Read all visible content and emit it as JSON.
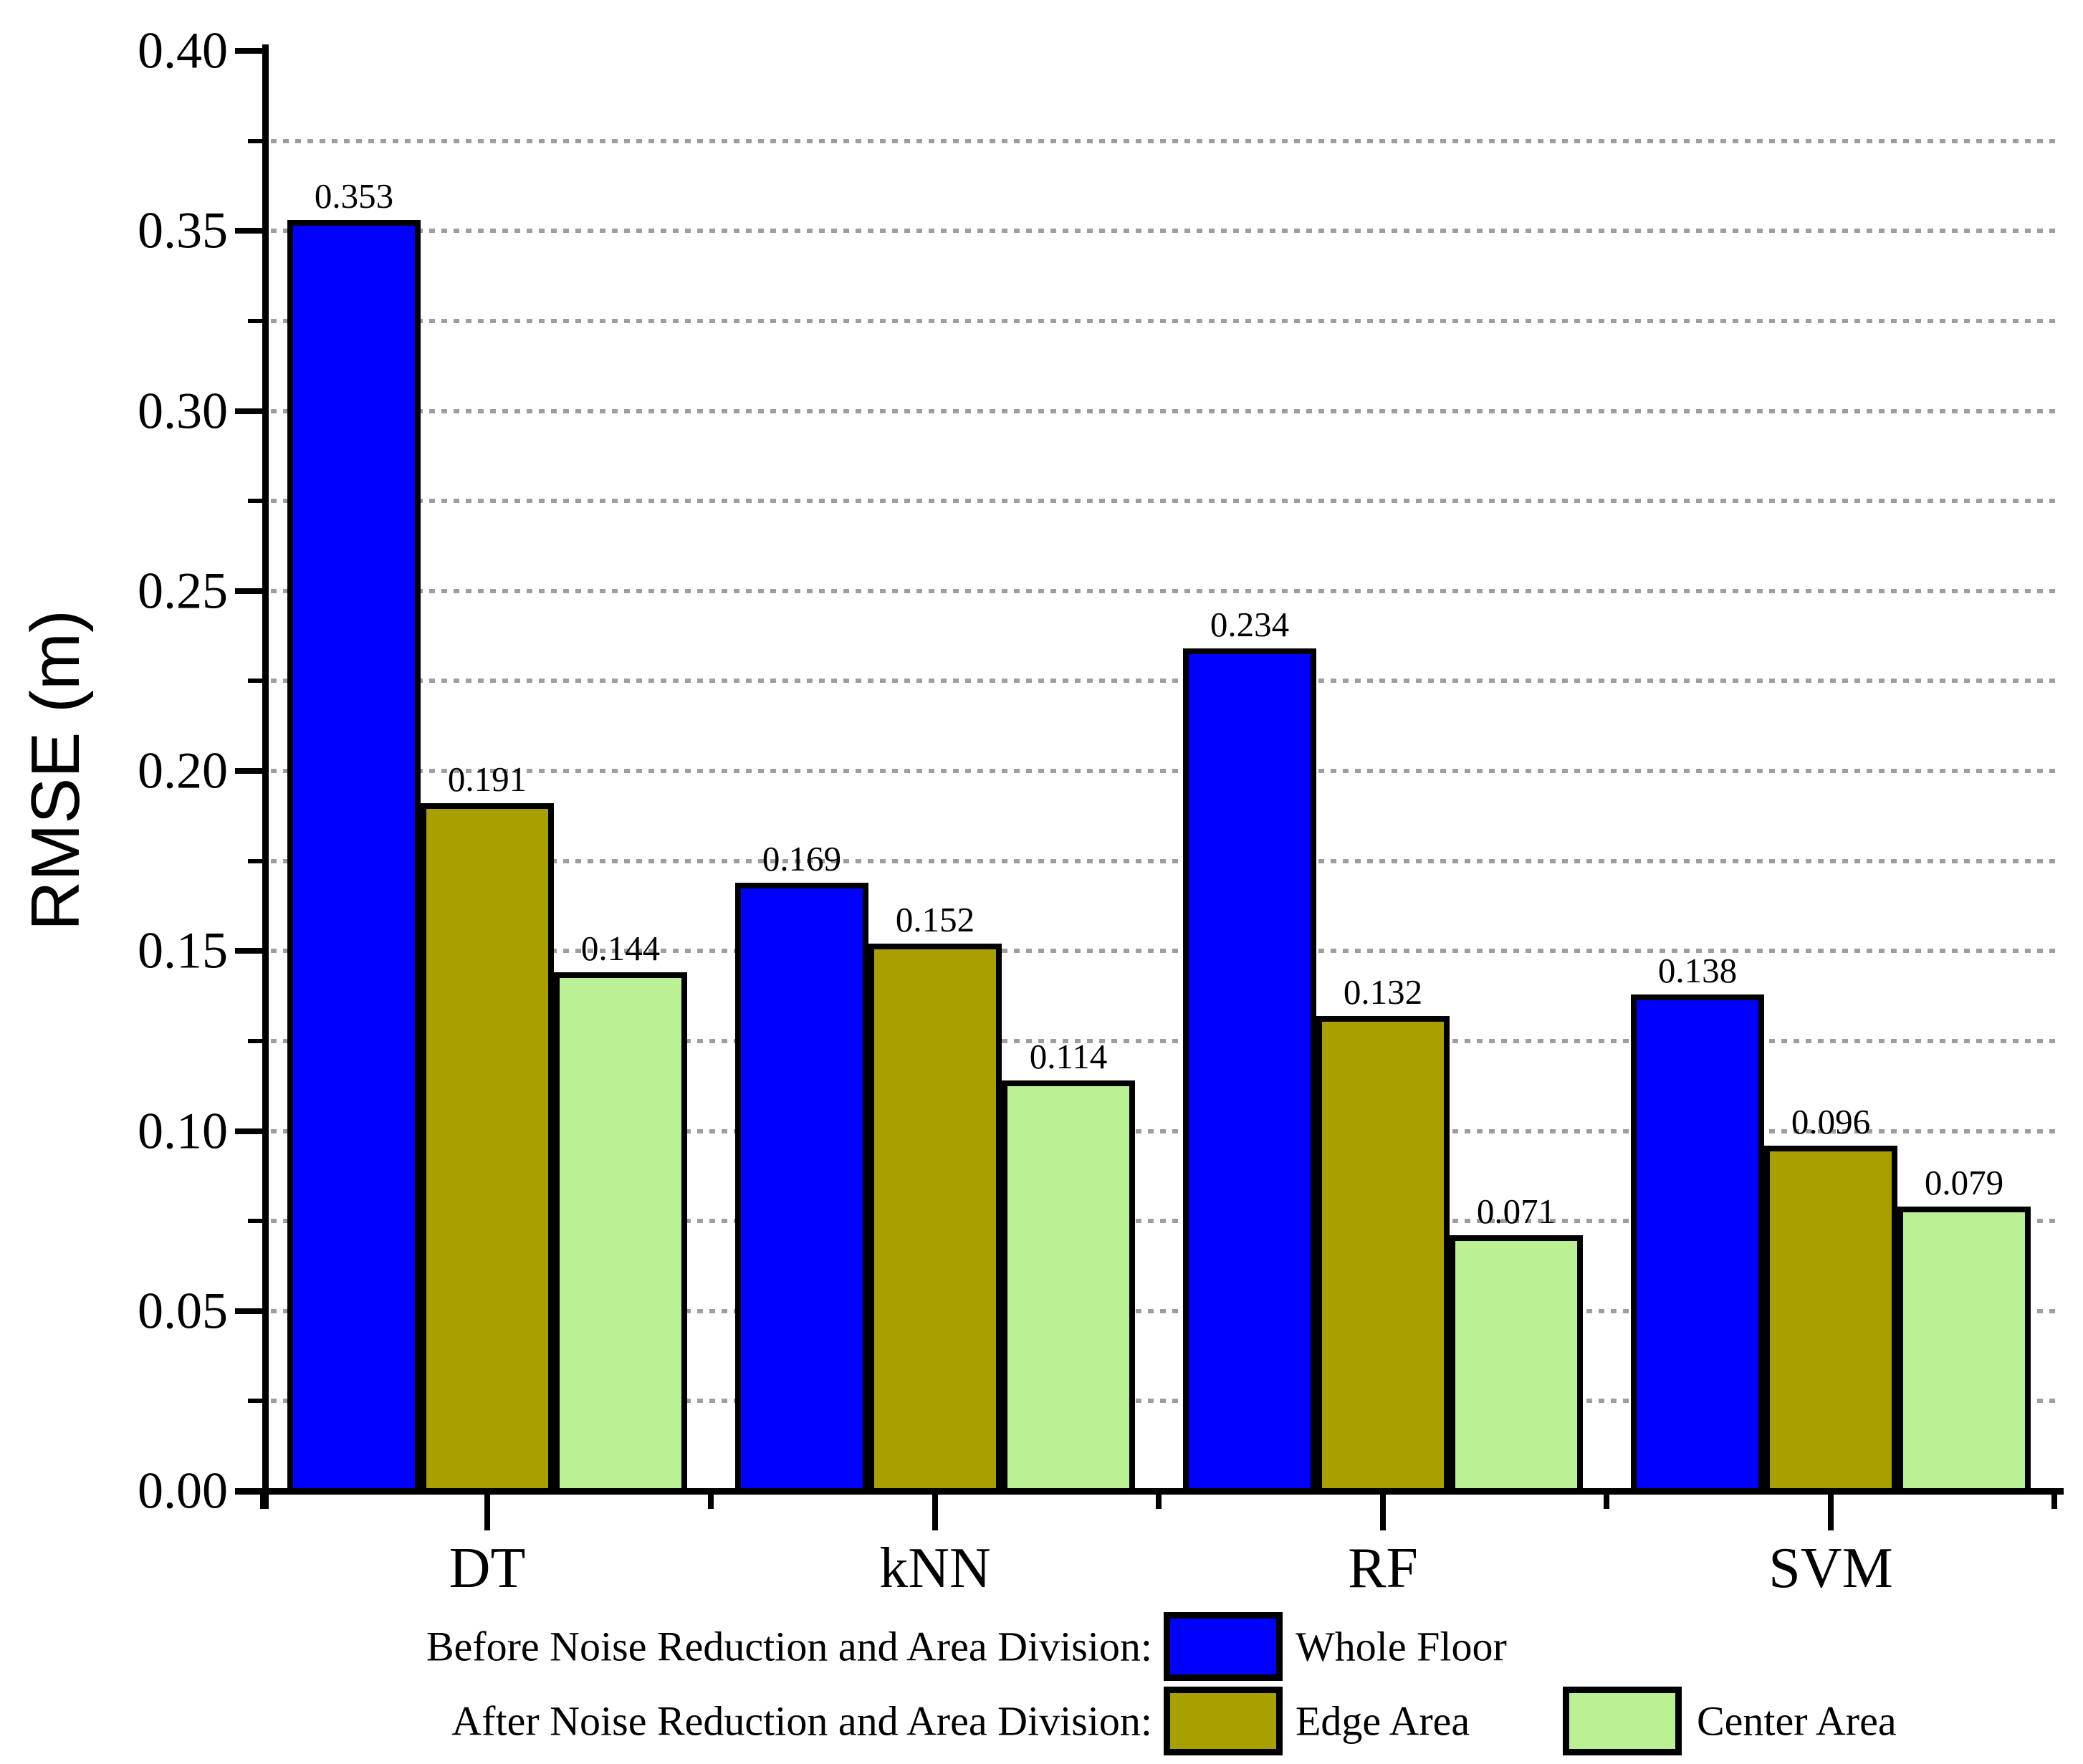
{
  "y_axis": {
    "label": "RMSE (m)"
  },
  "legend": {
    "row1_prefix": "Before Noise Reduction and Area Division:",
    "row2_prefix": "After Noise Reduction and Area Division:",
    "items": [
      {
        "label": "Whole Floor",
        "color": "#0000FF"
      },
      {
        "label": "Edge Area",
        "color": "#A8A000"
      },
      {
        "label": "Center Area",
        "color": "#BCF094"
      }
    ]
  },
  "chart_data": {
    "type": "bar",
    "categories": [
      "DT",
      "kNN",
      "RF",
      "SVM"
    ],
    "series": [
      {
        "name": "Whole Floor",
        "color": "#0000FF",
        "values": [
          0.353,
          0.169,
          0.234,
          0.138
        ]
      },
      {
        "name": "Edge Area",
        "color": "#A8A000",
        "values": [
          0.191,
          0.152,
          0.132,
          0.096
        ]
      },
      {
        "name": "Center Area",
        "color": "#BCF094",
        "values": [
          0.144,
          0.114,
          0.071,
          0.079
        ]
      }
    ],
    "title": "",
    "xlabel": "",
    "ylabel": "RMSE (m)",
    "ylim": [
      0.0,
      0.4
    ],
    "ytick_step": 0.05,
    "yminor_step": 0.025,
    "ytick_decimals": 2,
    "value_label_decimals": 3,
    "grid": "dotted horizontal at every 0.025",
    "gridline_color": "#9e9e9e",
    "bar_outline_color": "#000000",
    "legend_position": "bottom"
  }
}
